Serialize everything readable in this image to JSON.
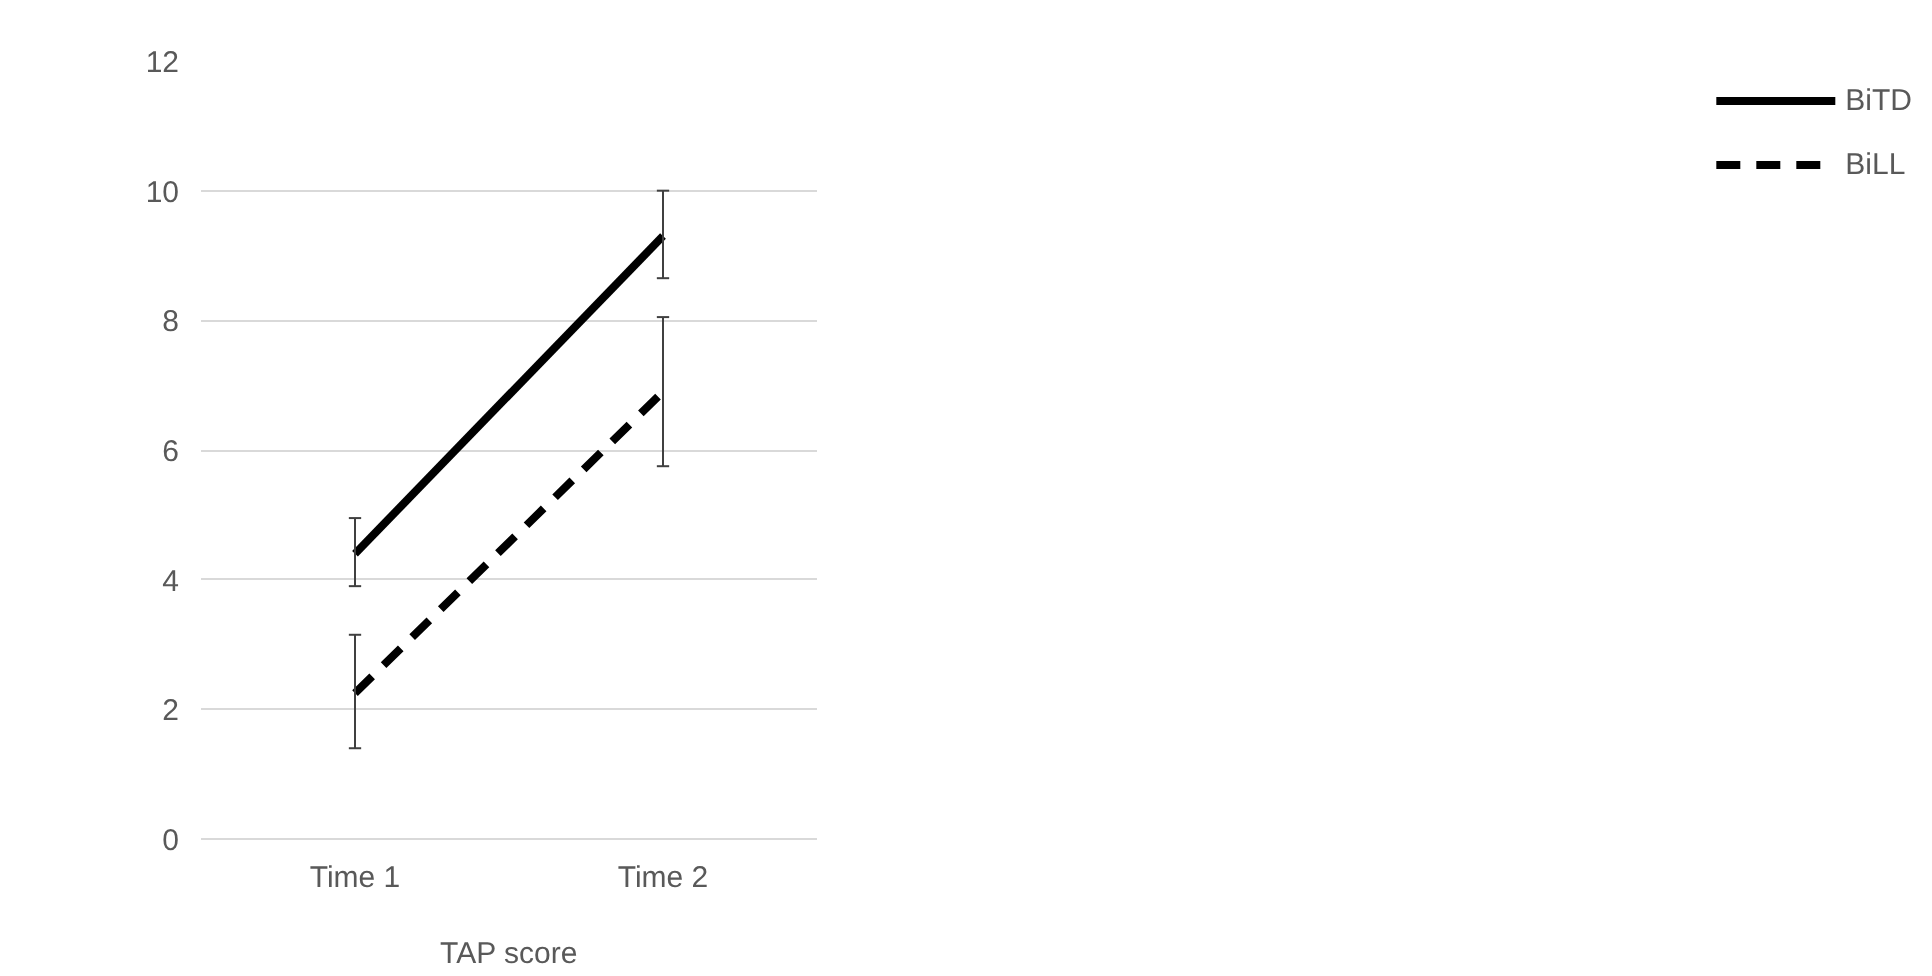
{
  "chart_data": {
    "type": "line",
    "xlabel": "TAP score",
    "categories": [
      "Time 1",
      "Time 2"
    ],
    "ylim": [
      0,
      12
    ],
    "yticks": [
      0,
      2,
      4,
      6,
      8,
      10,
      12
    ],
    "grid": "y",
    "legend": "right",
    "series": [
      {
        "name": "BiTD",
        "color": "#000000",
        "line_style": "solid",
        "values": [
          4.4,
          9.3
        ],
        "errors": [
          [
            3.9,
            4.95
          ],
          [
            8.65,
            10.0
          ]
        ]
      },
      {
        "name": "BiLL",
        "color": "#000000",
        "line_style": "dashed",
        "values": [
          2.25,
          6.9
        ],
        "errors": [
          [
            1.4,
            3.15
          ],
          [
            5.75,
            8.05
          ]
        ]
      }
    ]
  }
}
